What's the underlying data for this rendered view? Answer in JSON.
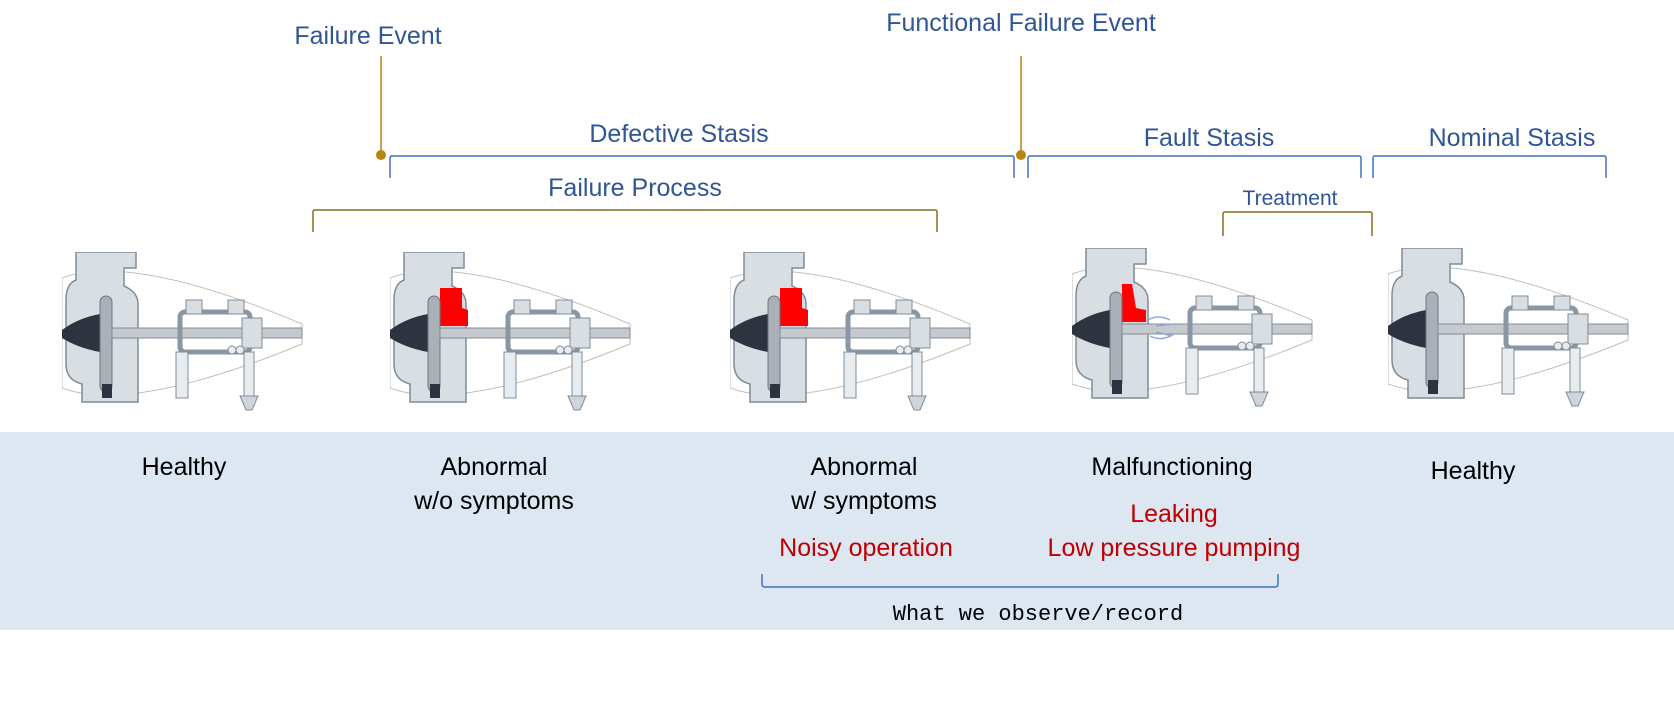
{
  "events": {
    "failure_event": "Failure Event",
    "functional_failure_event": "Functional Failure Event"
  },
  "stases": {
    "defective": "Defective Stasis",
    "fault": "Fault Stasis",
    "nominal": "Nominal Stasis"
  },
  "processes": {
    "failure_process": "Failure Process",
    "treatment": "Treatment"
  },
  "states": [
    {
      "line1": "Healthy",
      "line2": ""
    },
    {
      "line1": "Abnormal",
      "line2": "w/o symptoms"
    },
    {
      "line1": "Abnormal",
      "line2": "w/ symptoms"
    },
    {
      "line1": "Malfunctioning",
      "line2": ""
    },
    {
      "line1": "Healthy",
      "line2": ""
    }
  ],
  "symptoms": {
    "noisy": "Noisy operation",
    "leaking": "Leaking",
    "low_pressure": "Low pressure pumping"
  },
  "observe": "What we observe/record",
  "colors": {
    "label_blue": "#2f5597",
    "bracket_blue": "#4472c4",
    "event_gold": "#b8860b",
    "process_brown": "#8c6d1f",
    "symptom_red": "#c00000",
    "damage_red": "#ff0000",
    "band": "#dce7f2"
  },
  "pumps": [
    {
      "state": "healthy",
      "damage": false,
      "leak": false
    },
    {
      "state": "abnormal",
      "damage": true,
      "leak": false
    },
    {
      "state": "abnormal",
      "damage": true,
      "leak": false
    },
    {
      "state": "malfunctioning",
      "damage": true,
      "leak": true
    },
    {
      "state": "healthy",
      "damage": false,
      "leak": false
    }
  ]
}
